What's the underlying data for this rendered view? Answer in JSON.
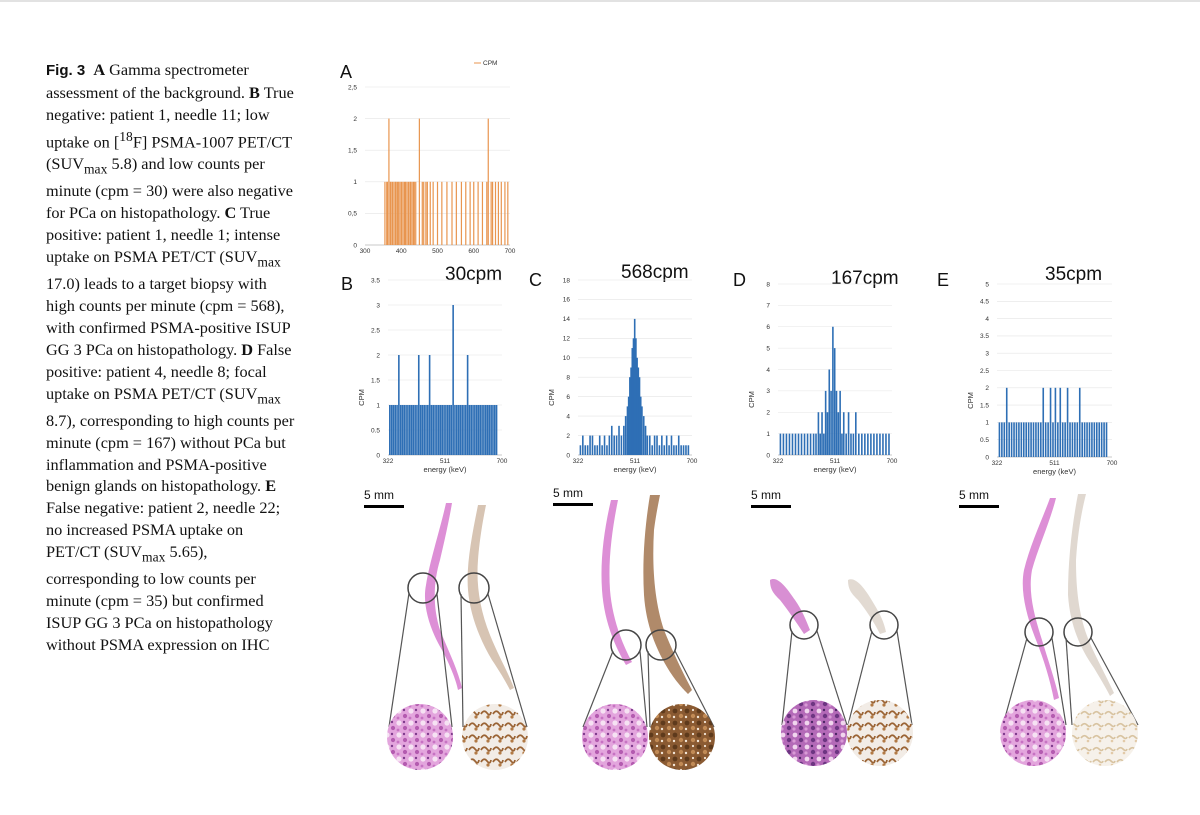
{
  "caption": {
    "fig_label": "Fig. 3",
    "A_letter": "A",
    "A_text": "Gamma spectrometer assessment of the background.",
    "B_letter": "B",
    "B_text_1": "True negative: patient 1, needle 11; low uptake on [",
    "B_sup": "18",
    "B_text_2": "F] PSMA-1007 PET/CT (SUV",
    "B_sub": "max",
    "B_text_3": "5.8) and low counts per minute (cpm = 30) were also negative for PCa on histopathology.",
    "C_letter": "C",
    "C_text_1": "True positive: patient 1, needle 1; intense uptake on PSMA PET/CT (SUV",
    "C_sub": "max",
    "C_text_2": "17.0) leads to a target biopsy with high counts per minute (cpm = 568), with confirmed PSMA-positive ISUP GG 3 PCa on histopathology.",
    "D_letter": "D",
    "D_text_1": "False positive: patient 4, needle 8; focal uptake on PSMA PET/CT (SUV",
    "D_sub": "max",
    "D_text_2": "8.7), corresponding to high counts per minute (cpm = 167) without PCa but inflammation and PSMA-positive benign glands on histopathology.",
    "E_letter": "E",
    "E_text_1": "False negative: patient 2, needle 22; no increased PSMA uptake on PET/CT (SUV",
    "E_sub": "max",
    "E_text_2": "5.65), corresponding to low counts per minute (cpm = 35) but confirmed ISUP GG 3 PCa on histopathology without PSMA expression on IHC"
  },
  "panels": {
    "A": {
      "letter": "A"
    },
    "B": {
      "letter": "B",
      "cpm": "30cpm",
      "scale": "5 mm"
    },
    "C": {
      "letter": "C",
      "cpm": "568cpm",
      "scale": "5 mm"
    },
    "D": {
      "letter": "D",
      "cpm": "167cpm",
      "scale": "5 mm"
    },
    "E": {
      "letter": "E",
      "cpm": "35cpm",
      "scale": "5 mm"
    }
  },
  "colors": {
    "spectrum_blue": "#2e6fb5",
    "spectrum_orange": "#e8954f",
    "he_pink": "#d77fd0",
    "ihc_brown": "#8a5a32"
  },
  "chart_data": [
    {
      "id": "A",
      "type": "bar",
      "title": "",
      "legend": [
        "CPM"
      ],
      "legend_position": "top",
      "x_ticks": [
        "300",
        "400",
        "500",
        "600",
        "700"
      ],
      "xlim": [
        300,
        700
      ],
      "y_ticks": [
        "0",
        "0,5",
        "1",
        "1,5",
        "2",
        "2,5"
      ],
      "ylim": [
        0,
        2.5
      ],
      "xlabel": "",
      "ylabel": "",
      "x": [
        355,
        360,
        362,
        366,
        370,
        372,
        376,
        380,
        384,
        386,
        390,
        393,
        397,
        401,
        405,
        409,
        412,
        416,
        420,
        424,
        426,
        430,
        434,
        436,
        440,
        450,
        458,
        462,
        468,
        472,
        480,
        488,
        500,
        512,
        526,
        540,
        552,
        566,
        578,
        590,
        600,
        612,
        624,
        636,
        640,
        648,
        652,
        660,
        668,
        676,
        686,
        694
      ],
      "values": [
        1,
        1,
        1,
        2,
        1,
        1,
        1,
        1,
        1,
        1,
        1,
        1,
        1,
        1,
        1,
        1,
        1,
        1,
        1,
        1,
        1,
        1,
        1,
        1,
        1,
        2,
        1,
        1,
        1,
        1,
        1,
        1,
        1,
        1,
        1,
        1,
        1,
        1,
        1,
        1,
        1,
        1,
        1,
        1,
        2,
        1,
        1,
        1,
        1,
        1,
        1,
        1
      ]
    },
    {
      "id": "B",
      "type": "bar",
      "title": "",
      "x_ticks": [
        "322",
        "511",
        "700"
      ],
      "xlim": [
        322,
        700
      ],
      "y_ticks": [
        "0",
        "0.5",
        "1",
        "1.5",
        "2",
        "2.5",
        "3",
        "3.5"
      ],
      "ylim": [
        0,
        3.5
      ],
      "xlabel": "energy (keV)",
      "ylabel": "CPM",
      "x": [
        328,
        334,
        340,
        346,
        352,
        358,
        364,
        370,
        376,
        382,
        388,
        394,
        400,
        406,
        412,
        418,
        424,
        430,
        436,
        442,
        448,
        454,
        460,
        466,
        472,
        478,
        484,
        490,
        496,
        502,
        508,
        514,
        520,
        526,
        532,
        538,
        544,
        550,
        556,
        562,
        568,
        574,
        580,
        586,
        592,
        598,
        604,
        610,
        616,
        622,
        628,
        634,
        640,
        646,
        652,
        658,
        664,
        670,
        676,
        682
      ],
      "values": [
        1,
        1,
        1,
        1,
        1,
        2,
        1,
        1,
        1,
        1,
        1,
        1,
        1,
        1,
        1,
        1,
        2,
        1,
        1,
        1,
        1,
        1,
        2,
        1,
        1,
        1,
        1,
        1,
        1,
        1,
        1,
        1,
        1,
        1,
        1,
        3,
        1,
        1,
        1,
        1,
        1,
        1,
        1,
        2,
        1,
        1,
        1,
        1,
        1,
        1,
        1,
        1,
        1,
        1,
        1,
        1,
        1,
        1,
        1,
        1
      ]
    },
    {
      "id": "C",
      "type": "bar",
      "title": "",
      "x_ticks": [
        "322",
        "511",
        "700"
      ],
      "xlim": [
        322,
        700
      ],
      "y_ticks": [
        "0",
        "2",
        "4",
        "6",
        "8",
        "10",
        "12",
        "14",
        "16",
        "18"
      ],
      "ylim": [
        0,
        18
      ],
      "xlabel": "energy (keV)",
      "ylabel": "CPM",
      "x": [
        330,
        338,
        346,
        354,
        362,
        370,
        378,
        386,
        394,
        402,
        410,
        418,
        426,
        434,
        442,
        450,
        458,
        466,
        474,
        480,
        486,
        490,
        494,
        498,
        502,
        506,
        510,
        514,
        518,
        522,
        526,
        530,
        534,
        540,
        546,
        552,
        560,
        568,
        576,
        584,
        592,
        600,
        608,
        616,
        624,
        632,
        640,
        648,
        656,
        664,
        672,
        680,
        688
      ],
      "values": [
        1,
        2,
        1,
        1,
        2,
        2,
        1,
        1,
        2,
        1,
        2,
        1,
        2,
        3,
        2,
        2,
        3,
        2,
        3,
        4,
        5,
        6,
        8,
        9,
        11,
        12,
        14,
        12,
        10,
        9,
        8,
        6,
        5,
        4,
        3,
        2,
        2,
        1,
        2,
        2,
        1,
        2,
        1,
        2,
        1,
        2,
        1,
        1,
        2,
        1,
        1,
        1,
        1
      ]
    },
    {
      "id": "D",
      "type": "bar",
      "title": "",
      "x_ticks": [
        "322",
        "511",
        "700"
      ],
      "xlim": [
        322,
        700
      ],
      "y_ticks": [
        "0",
        "1",
        "2",
        "3",
        "4",
        "5",
        "6",
        "7",
        "8"
      ],
      "ylim": [
        0,
        8
      ],
      "xlabel": "energy (keV)",
      "ylabel": "CPM",
      "x": [
        330,
        340,
        350,
        360,
        370,
        380,
        390,
        400,
        410,
        420,
        430,
        440,
        448,
        456,
        462,
        468,
        474,
        480,
        486,
        492,
        498,
        504,
        510,
        516,
        522,
        528,
        534,
        540,
        548,
        556,
        564,
        572,
        580,
        590,
        600,
        610,
        620,
        630,
        640,
        650,
        660,
        670,
        680,
        690
      ],
      "values": [
        1,
        1,
        1,
        1,
        1,
        1,
        1,
        1,
        1,
        1,
        1,
        1,
        1,
        2,
        1,
        2,
        1,
        3,
        2,
        4,
        3,
        6,
        5,
        3,
        2,
        3,
        1,
        2,
        1,
        2,
        1,
        1,
        2,
        1,
        1,
        1,
        1,
        1,
        1,
        1,
        1,
        1,
        1,
        1
      ]
    },
    {
      "id": "E",
      "type": "bar",
      "title": "",
      "x_ticks": [
        "322",
        "511",
        "700"
      ],
      "xlim": [
        322,
        700
      ],
      "y_ticks": [
        "0",
        "0.5",
        "1",
        "1.5",
        "2",
        "2.5",
        "3",
        "3.5",
        "4",
        "4.5",
        "5"
      ],
      "ylim": [
        0,
        5
      ],
      "xlabel": "energy (keV)",
      "ylabel": "CPM",
      "x": [
        330,
        338,
        346,
        354,
        362,
        370,
        378,
        386,
        394,
        402,
        410,
        418,
        426,
        434,
        442,
        450,
        458,
        466,
        474,
        482,
        490,
        498,
        506,
        514,
        522,
        530,
        538,
        546,
        554,
        562,
        570,
        578,
        586,
        594,
        602,
        610,
        618,
        626,
        634,
        642,
        650,
        658,
        666,
        674,
        682
      ],
      "values": [
        1,
        1,
        1,
        2,
        1,
        1,
        1,
        1,
        1,
        1,
        1,
        1,
        1,
        1,
        1,
        1,
        1,
        1,
        2,
        1,
        1,
        2,
        1,
        2,
        1,
        2,
        1,
        1,
        2,
        1,
        1,
        1,
        1,
        2,
        1,
        1,
        1,
        1,
        1,
        1,
        1,
        1,
        1,
        1,
        1
      ]
    }
  ]
}
